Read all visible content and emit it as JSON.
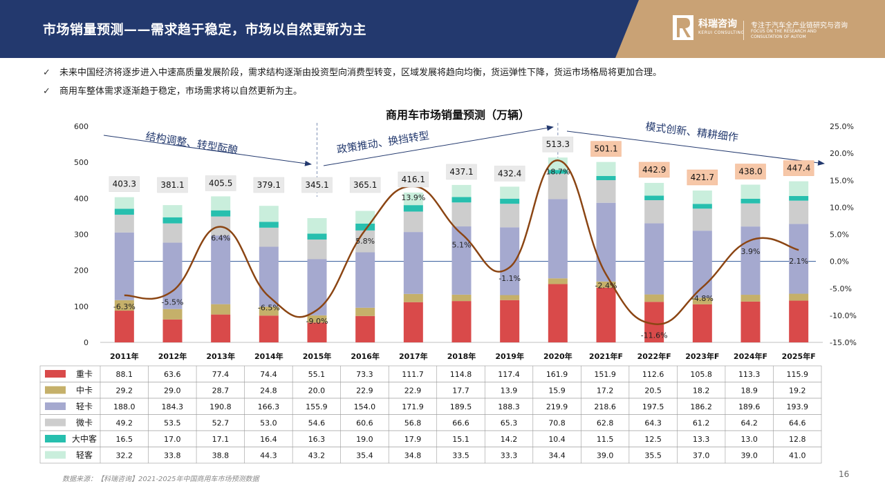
{
  "header": {
    "title": "市场销量预测——需求趋于稳定，市场以自然更新为主",
    "logo_name": "科瑞咨询",
    "logo_en": "KERUI CONSULTING",
    "tagline": "专注于汽车全产业链研究与咨询",
    "tagline_en": "FOCUS ON THE RESEARCH AND CONSULTATION OF AUTOM"
  },
  "bullets": [
    "未来中国经济将逐步进入中速高质量发展阶段，需求结构逐渐由投资型向消费型转变，区域发展将趋向均衡，货运弹性下降，货运市场格局将更加合理。",
    "商用车整体需求逐渐趋于稳定，市场需求将以自然更新为主。"
  ],
  "chart_data": {
    "type": "bar",
    "stacked": true,
    "title": "商用车市场销量预测（万辆）",
    "categories": [
      "2011年",
      "2012年",
      "2013年",
      "2014年",
      "2015年",
      "2016年",
      "2017年",
      "2018年",
      "2019年",
      "2020年",
      "2021年F",
      "2022年F",
      "2023年F",
      "2024年F",
      "2025年F"
    ],
    "series": [
      {
        "name": "重卡",
        "color": "#d94a4a",
        "values": [
          88.1,
          63.6,
          77.4,
          74.4,
          55.1,
          73.3,
          111.7,
          114.8,
          117.4,
          161.9,
          151.9,
          112.6,
          105.8,
          113.3,
          115.9
        ]
      },
      {
        "name": "中卡",
        "color": "#c5b06a",
        "values": [
          29.2,
          29.0,
          28.7,
          24.8,
          20.0,
          22.9,
          22.9,
          17.7,
          13.9,
          15.9,
          17.2,
          20.5,
          18.2,
          18.9,
          19.2
        ]
      },
      {
        "name": "轻卡",
        "color": "#a5a9cf",
        "values": [
          188.0,
          184.3,
          190.8,
          166.3,
          155.9,
          154.0,
          171.9,
          189.5,
          188.3,
          219.9,
          218.6,
          197.5,
          186.2,
          189.6,
          193.9
        ]
      },
      {
        "name": "微卡",
        "color": "#cdcdcd",
        "values": [
          49.2,
          53.5,
          52.7,
          53.0,
          54.6,
          60.6,
          56.8,
          66.6,
          65.3,
          70.8,
          62.8,
          64.3,
          61.2,
          64.2,
          64.6
        ]
      },
      {
        "name": "大中客",
        "color": "#27bfae",
        "values": [
          16.5,
          17.0,
          17.1,
          16.4,
          16.3,
          19.0,
          17.9,
          15.1,
          14.2,
          10.4,
          11.5,
          12.5,
          13.3,
          13.0,
          12.8
        ]
      },
      {
        "name": "轻客",
        "color": "#c9eedc",
        "values": [
          32.2,
          33.8,
          38.8,
          44.3,
          43.2,
          35.4,
          34.8,
          33.5,
          33.3,
          34.4,
          39.0,
          35.5,
          37.0,
          39.0,
          41.0
        ]
      }
    ],
    "totals": [
      "403.3",
      "381.1",
      "405.5",
      "379.1",
      "345.1",
      "365.1",
      "416.1",
      "437.1",
      "432.4",
      "513.3",
      "501.1",
      "442.9",
      "421.7",
      "438.0",
      "447.4"
    ],
    "growth": [
      -6.3,
      -5.5,
      6.4,
      -6.5,
      -9.0,
      5.8,
      13.9,
      5.1,
      -1.1,
      18.7,
      -2.4,
      -11.6,
      -4.8,
      3.9,
      2.1
    ],
    "growth_labels": [
      "-6.3%",
      "-5.5%",
      "6.4%",
      "-6.5%",
      "-9.0%",
      "5.8%",
      "13.9%",
      "5.1%",
      "-1.1%",
      "18.7%",
      "-2.4%",
      "-11.6%",
      "-4.8%",
      "3.9%",
      "2.1%"
    ],
    "growth_color": "#8b4513",
    "ylim": [
      0,
      600
    ],
    "yticks": [
      "0",
      "100",
      "200",
      "300",
      "400",
      "500",
      "600"
    ],
    "y2lim": [
      -15,
      25
    ],
    "y2ticks": [
      "-15.0%",
      "-10.0%",
      "-5.0%",
      "0.0%",
      "5.0%",
      "10.0%",
      "15.0%",
      "20.0%",
      "25.0%"
    ],
    "annotations": [
      "结构调整、转型酝酿",
      "政策推动、换挡转型",
      "模式创新、精耕细作"
    ]
  },
  "source": "数据来源：【科瑞咨询】2021-2025年中国商用车市场预测数据",
  "page_number": "16"
}
